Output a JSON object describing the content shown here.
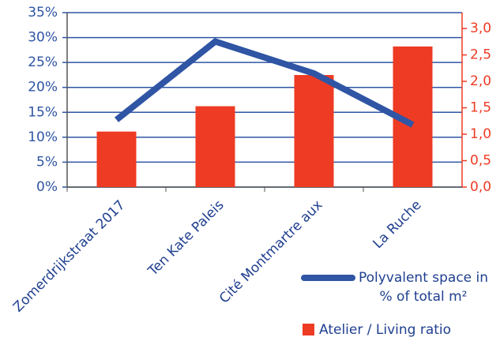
{
  "chart_data": {
    "type": "bar",
    "categories": [
      "Zomerdrijkstraat 2017",
      "Ten Kate Paleis",
      "Cité Montmartre aux",
      "La Ruche"
    ],
    "series": [
      {
        "name": "Polyvalent space in % of total m²",
        "type": "line",
        "color": "#2f55a4",
        "values": [
          13.5,
          29.2,
          22.8,
          12.5
        ]
      },
      {
        "name": "Atelier / Living ratio",
        "type": "bar",
        "color": "#ee3b24",
        "axis": "y2",
        "values": [
          1.05,
          1.53,
          2.12,
          2.66
        ]
      }
    ],
    "ylim": [
      0,
      35
    ],
    "yticks": [
      {
        "value": 0,
        "label": "0%"
      },
      {
        "value": 5,
        "label": "5%"
      },
      {
        "value": 10,
        "label": "10%"
      },
      {
        "value": 15,
        "label": "15%"
      },
      {
        "value": 20,
        "label": "20%"
      },
      {
        "value": 25,
        "label": "25%"
      },
      {
        "value": 30,
        "label": "30%"
      },
      {
        "value": 35,
        "label": "35%"
      }
    ],
    "y2lim": [
      0,
      3.3
    ],
    "y2ticks": [
      {
        "value": 0,
        "label": "0,0"
      },
      {
        "value": 0.5,
        "label": "0,5"
      },
      {
        "value": 1,
        "label": "1,0"
      },
      {
        "value": 1.5,
        "label": "1,5"
      },
      {
        "value": 2,
        "label": "2,0"
      },
      {
        "value": 2.5,
        "label": "2,5"
      },
      {
        "value": 3,
        "label": "3,0"
      }
    ],
    "grid": true
  }
}
